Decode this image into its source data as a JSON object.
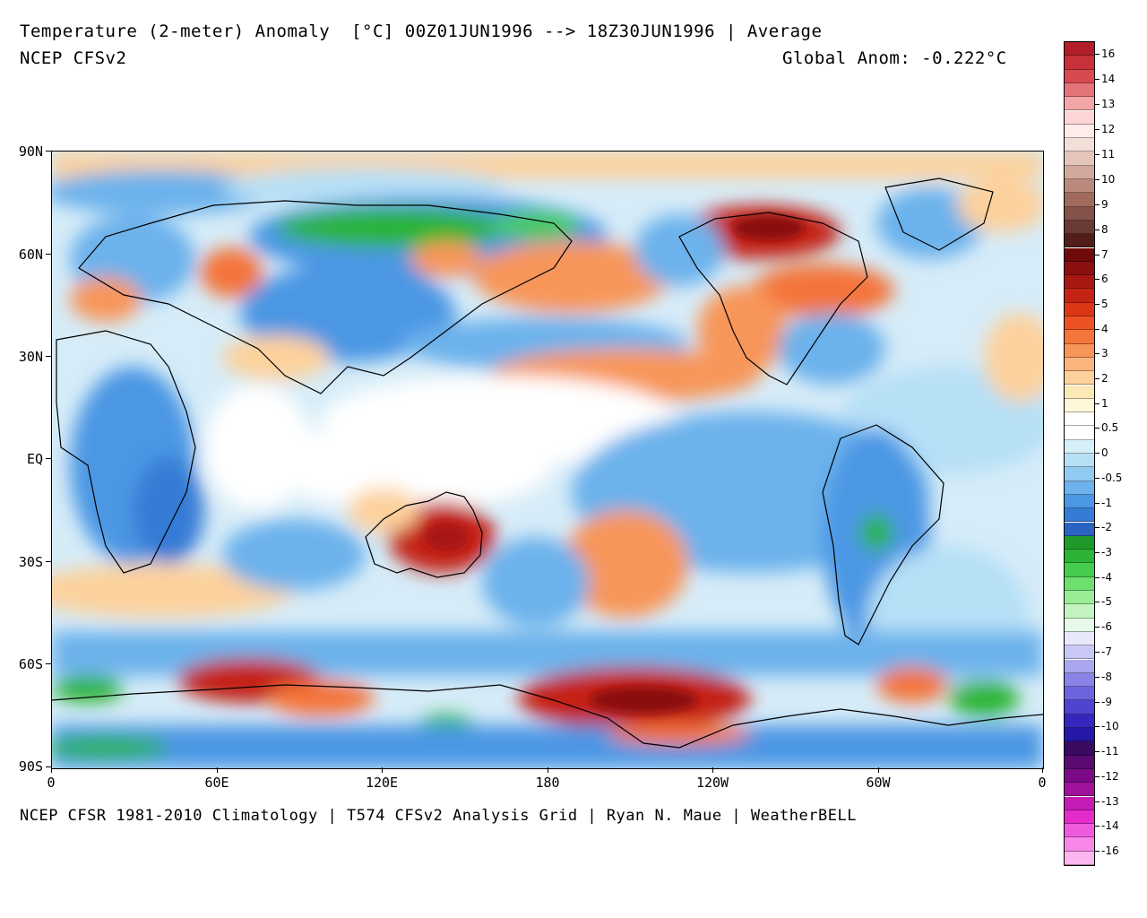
{
  "header": {
    "title": "Temperature (2-meter) Anomaly  [°C] 00Z01JUN1996 --> 18Z30JUN1996 | Average",
    "model": "NCEP CFSv2",
    "global_anom": "Global Anom: -0.222°C"
  },
  "footer": {
    "credits": "NCEP CFSR 1981-2010 Climatology | T574 CFSv2 Analysis Grid | Ryan N. Maue | WeatherBELL"
  },
  "axes": {
    "lat_labels": [
      "90N",
      "60N",
      "30N",
      "EQ",
      "30S",
      "60S",
      "90S"
    ],
    "lon_labels": [
      "0",
      "60E",
      "120E",
      "180",
      "120W",
      "60W",
      "0"
    ]
  },
  "colorbar": {
    "labels": [
      "16",
      "14",
      "13",
      "12",
      "11",
      "10",
      "9",
      "8",
      "7",
      "6",
      "5",
      "4",
      "3",
      "2",
      "1",
      "0.5",
      "0",
      "-0.5",
      "-1",
      "-2",
      "-3",
      "-4",
      "-5",
      "-6",
      "-7",
      "-8",
      "-9",
      "-10",
      "-11",
      "-12",
      "-13",
      "-14",
      "-16"
    ],
    "colors": [
      "#b21e2a",
      "#c8303a",
      "#d84a50",
      "#e4737a",
      "#f2a6a8",
      "#fbd6d4",
      "#fdecea",
      "#f2e0d8",
      "#e6c6bc",
      "#d3a89c",
      "#bb8a7e",
      "#a06a5e",
      "#85524a",
      "#6a3a34",
      "#521e1a",
      "#6e0a0a",
      "#8a0f0f",
      "#a81812",
      "#c42414",
      "#dc3616",
      "#ec5224",
      "#f4743a",
      "#f8965a",
      "#fbb57c",
      "#fdd19c",
      "#fde9b8",
      "#fff8d8",
      "#ffffff",
      "#ffffff",
      "#d6f0fa",
      "#b6e0f6",
      "#92cbf2",
      "#6cb2ec",
      "#4c97e4",
      "#347cd6",
      "#2a64c0",
      "#1f9a2a",
      "#2cb436",
      "#46cc4c",
      "#6ee070",
      "#9aec96",
      "#c4f4c0",
      "#e6faea",
      "#e8e8fa",
      "#cac8f6",
      "#aaa6f0",
      "#8a84e8",
      "#6c64de",
      "#4e44d0",
      "#3626be",
      "#2618a6",
      "#3a0a60",
      "#5a0a70",
      "#7a0a86",
      "#a0129c",
      "#c41cb4",
      "#e42ccc",
      "#f05ade",
      "#f888e8",
      "#fab6f0"
    ]
  },
  "map": {
    "field": "Temperature (2-meter) Anomaly",
    "units": "°C",
    "colors": {
      "warm_strong": "#c42414",
      "warm": "#f8965a",
      "warm_light": "#fdd19c",
      "neutral": "#ffffff",
      "cool_light": "#b6e0f6",
      "cool": "#6cb2ec",
      "cool_strong": "#2a64c0",
      "very_cold": "#2cb436"
    }
  }
}
